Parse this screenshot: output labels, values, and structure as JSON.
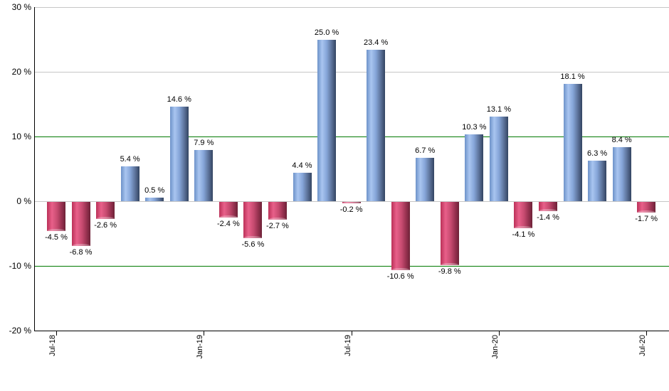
{
  "chart_data": {
    "type": "bar",
    "title": "",
    "xlabel": "",
    "ylabel": "",
    "ylim": [
      -20,
      30
    ],
    "grid": "horizontal",
    "legend": "none",
    "yticks": [
      {
        "value": 30,
        "label": "30 %",
        "line": "gray"
      },
      {
        "value": 20,
        "label": "20 %",
        "line": "gray"
      },
      {
        "value": 10,
        "label": "10 %",
        "line": "green"
      },
      {
        "value": 0,
        "label": "0 %",
        "line": "gray"
      },
      {
        "value": -10,
        "label": "-10 %",
        "line": "green"
      },
      {
        "value": -20,
        "label": "-20 %",
        "line": "axis"
      }
    ],
    "xticks": [
      {
        "bar_index": 0,
        "label": "Jul-18"
      },
      {
        "bar_index": 6,
        "label": "Jan-19"
      },
      {
        "bar_index": 12,
        "label": "Jul-19"
      },
      {
        "bar_index": 18,
        "label": "Jan-20"
      },
      {
        "bar_index": 24,
        "label": "Jul-20"
      }
    ],
    "bars": [
      {
        "value": -4.5,
        "label": "-4.5 %"
      },
      {
        "value": -6.8,
        "label": "-6.8 %"
      },
      {
        "value": -2.6,
        "label": "-2.6 %"
      },
      {
        "value": 5.4,
        "label": "5.4 %"
      },
      {
        "value": 0.5,
        "label": "0.5 %"
      },
      {
        "value": 14.6,
        "label": "14.6 %"
      },
      {
        "value": 7.9,
        "label": "7.9 %"
      },
      {
        "value": -2.4,
        "label": "-2.4 %"
      },
      {
        "value": -5.6,
        "label": "-5.6 %"
      },
      {
        "value": -2.7,
        "label": "-2.7 %"
      },
      {
        "value": 4.4,
        "label": "4.4 %"
      },
      {
        "value": 25.0,
        "label": "25.0 %"
      },
      {
        "value": -0.2,
        "label": "-0.2 %"
      },
      {
        "value": 23.4,
        "label": "23.4 %"
      },
      {
        "value": -10.6,
        "label": "-10.6 %"
      },
      {
        "value": 6.7,
        "label": "6.7 %"
      },
      {
        "value": -9.8,
        "label": "-9.8 %"
      },
      {
        "value": 10.3,
        "label": "10.3 %"
      },
      {
        "value": 13.1,
        "label": "13.1 %"
      },
      {
        "value": -4.1,
        "label": "-4.1 %"
      },
      {
        "value": -1.4,
        "label": "-1.4 %"
      },
      {
        "value": 18.1,
        "label": "18.1 %"
      },
      {
        "value": 6.3,
        "label": "6.3 %"
      },
      {
        "value": 8.4,
        "label": "8.4 %"
      },
      {
        "value": -1.7,
        "label": "-1.7 %"
      }
    ],
    "colors": {
      "positive_bar_mid": "#6d92c9",
      "positive_bar_highlight": "#a9c5f0",
      "positive_bar_dark": "#334461",
      "negative_bar_mid": "#bb3158",
      "negative_bar_highlight": "#e8608a",
      "negative_bar_dark": "#6d2238",
      "grid_gray": "#c6c6c6",
      "grid_green": "#007a00",
      "axis": "#000000",
      "text": "#000000",
      "background": "#ffffff"
    }
  }
}
